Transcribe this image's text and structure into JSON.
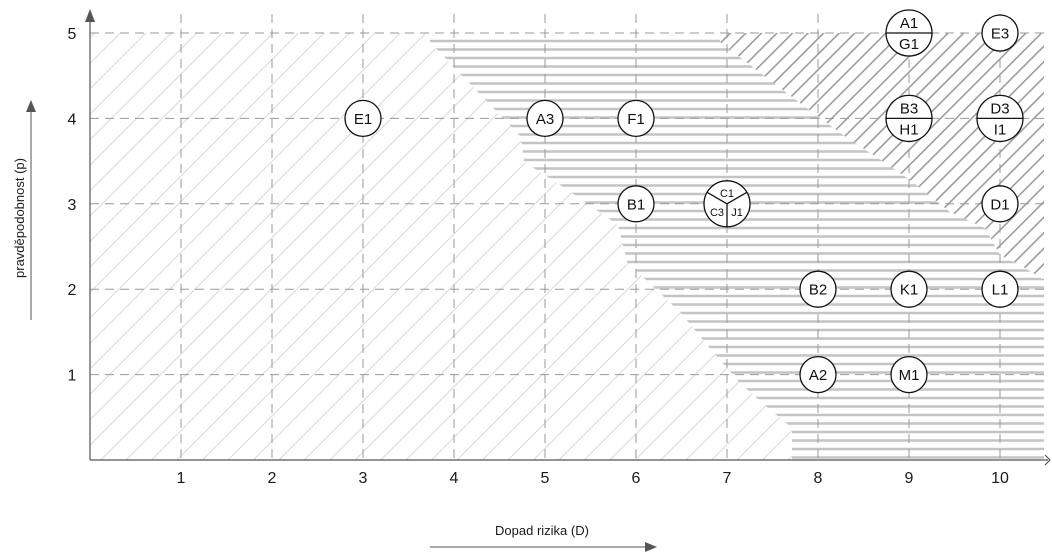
{
  "chart_data": {
    "type": "scatter",
    "title": "",
    "xlabel": "Dopad rizika (D)",
    "ylabel": "pravděpodobnost (p)",
    "xlim": [
      0,
      10.5
    ],
    "ylim": [
      0,
      5
    ],
    "x_ticks": [
      "1",
      "2",
      "3",
      "4",
      "5",
      "6",
      "7",
      "8",
      "9",
      "10"
    ],
    "y_ticks": [
      "1",
      "2",
      "3",
      "4",
      "5"
    ],
    "grid": true,
    "colors": {
      "axis": "#555555",
      "grid": "#9a9a9a",
      "low_zone_hatch": "#cfcfcf",
      "mid_zone_lines": "#c4c4c4",
      "high_zone_hatch": "#9c9c9c",
      "marker_stroke": "#111111",
      "marker_fill": "#ffffff"
    },
    "points": [
      {
        "labels": [
          "E1"
        ],
        "x": 3,
        "y": 4
      },
      {
        "labels": [
          "A3"
        ],
        "x": 5,
        "y": 4
      },
      {
        "labels": [
          "F1"
        ],
        "x": 6,
        "y": 4
      },
      {
        "labels": [
          "B1"
        ],
        "x": 6,
        "y": 3
      },
      {
        "labels": [
          "C1",
          "C3",
          "J1"
        ],
        "x": 7,
        "y": 3
      },
      {
        "labels": [
          "A1",
          "G1"
        ],
        "x": 9,
        "y": 5
      },
      {
        "labels": [
          "E3"
        ],
        "x": 10,
        "y": 5
      },
      {
        "labels": [
          "B3",
          "H1"
        ],
        "x": 9,
        "y": 4
      },
      {
        "labels": [
          "D3",
          "I1"
        ],
        "x": 10,
        "y": 4
      },
      {
        "labels": [
          "D1"
        ],
        "x": 10,
        "y": 3
      },
      {
        "labels": [
          "B2"
        ],
        "x": 8,
        "y": 2
      },
      {
        "labels": [
          "K1"
        ],
        "x": 9,
        "y": 2
      },
      {
        "labels": [
          "L1"
        ],
        "x": 10,
        "y": 2
      },
      {
        "labels": [
          "A2"
        ],
        "x": 8,
        "y": 1
      },
      {
        "labels": [
          "M1"
        ],
        "x": 9,
        "y": 1
      }
    ]
  }
}
